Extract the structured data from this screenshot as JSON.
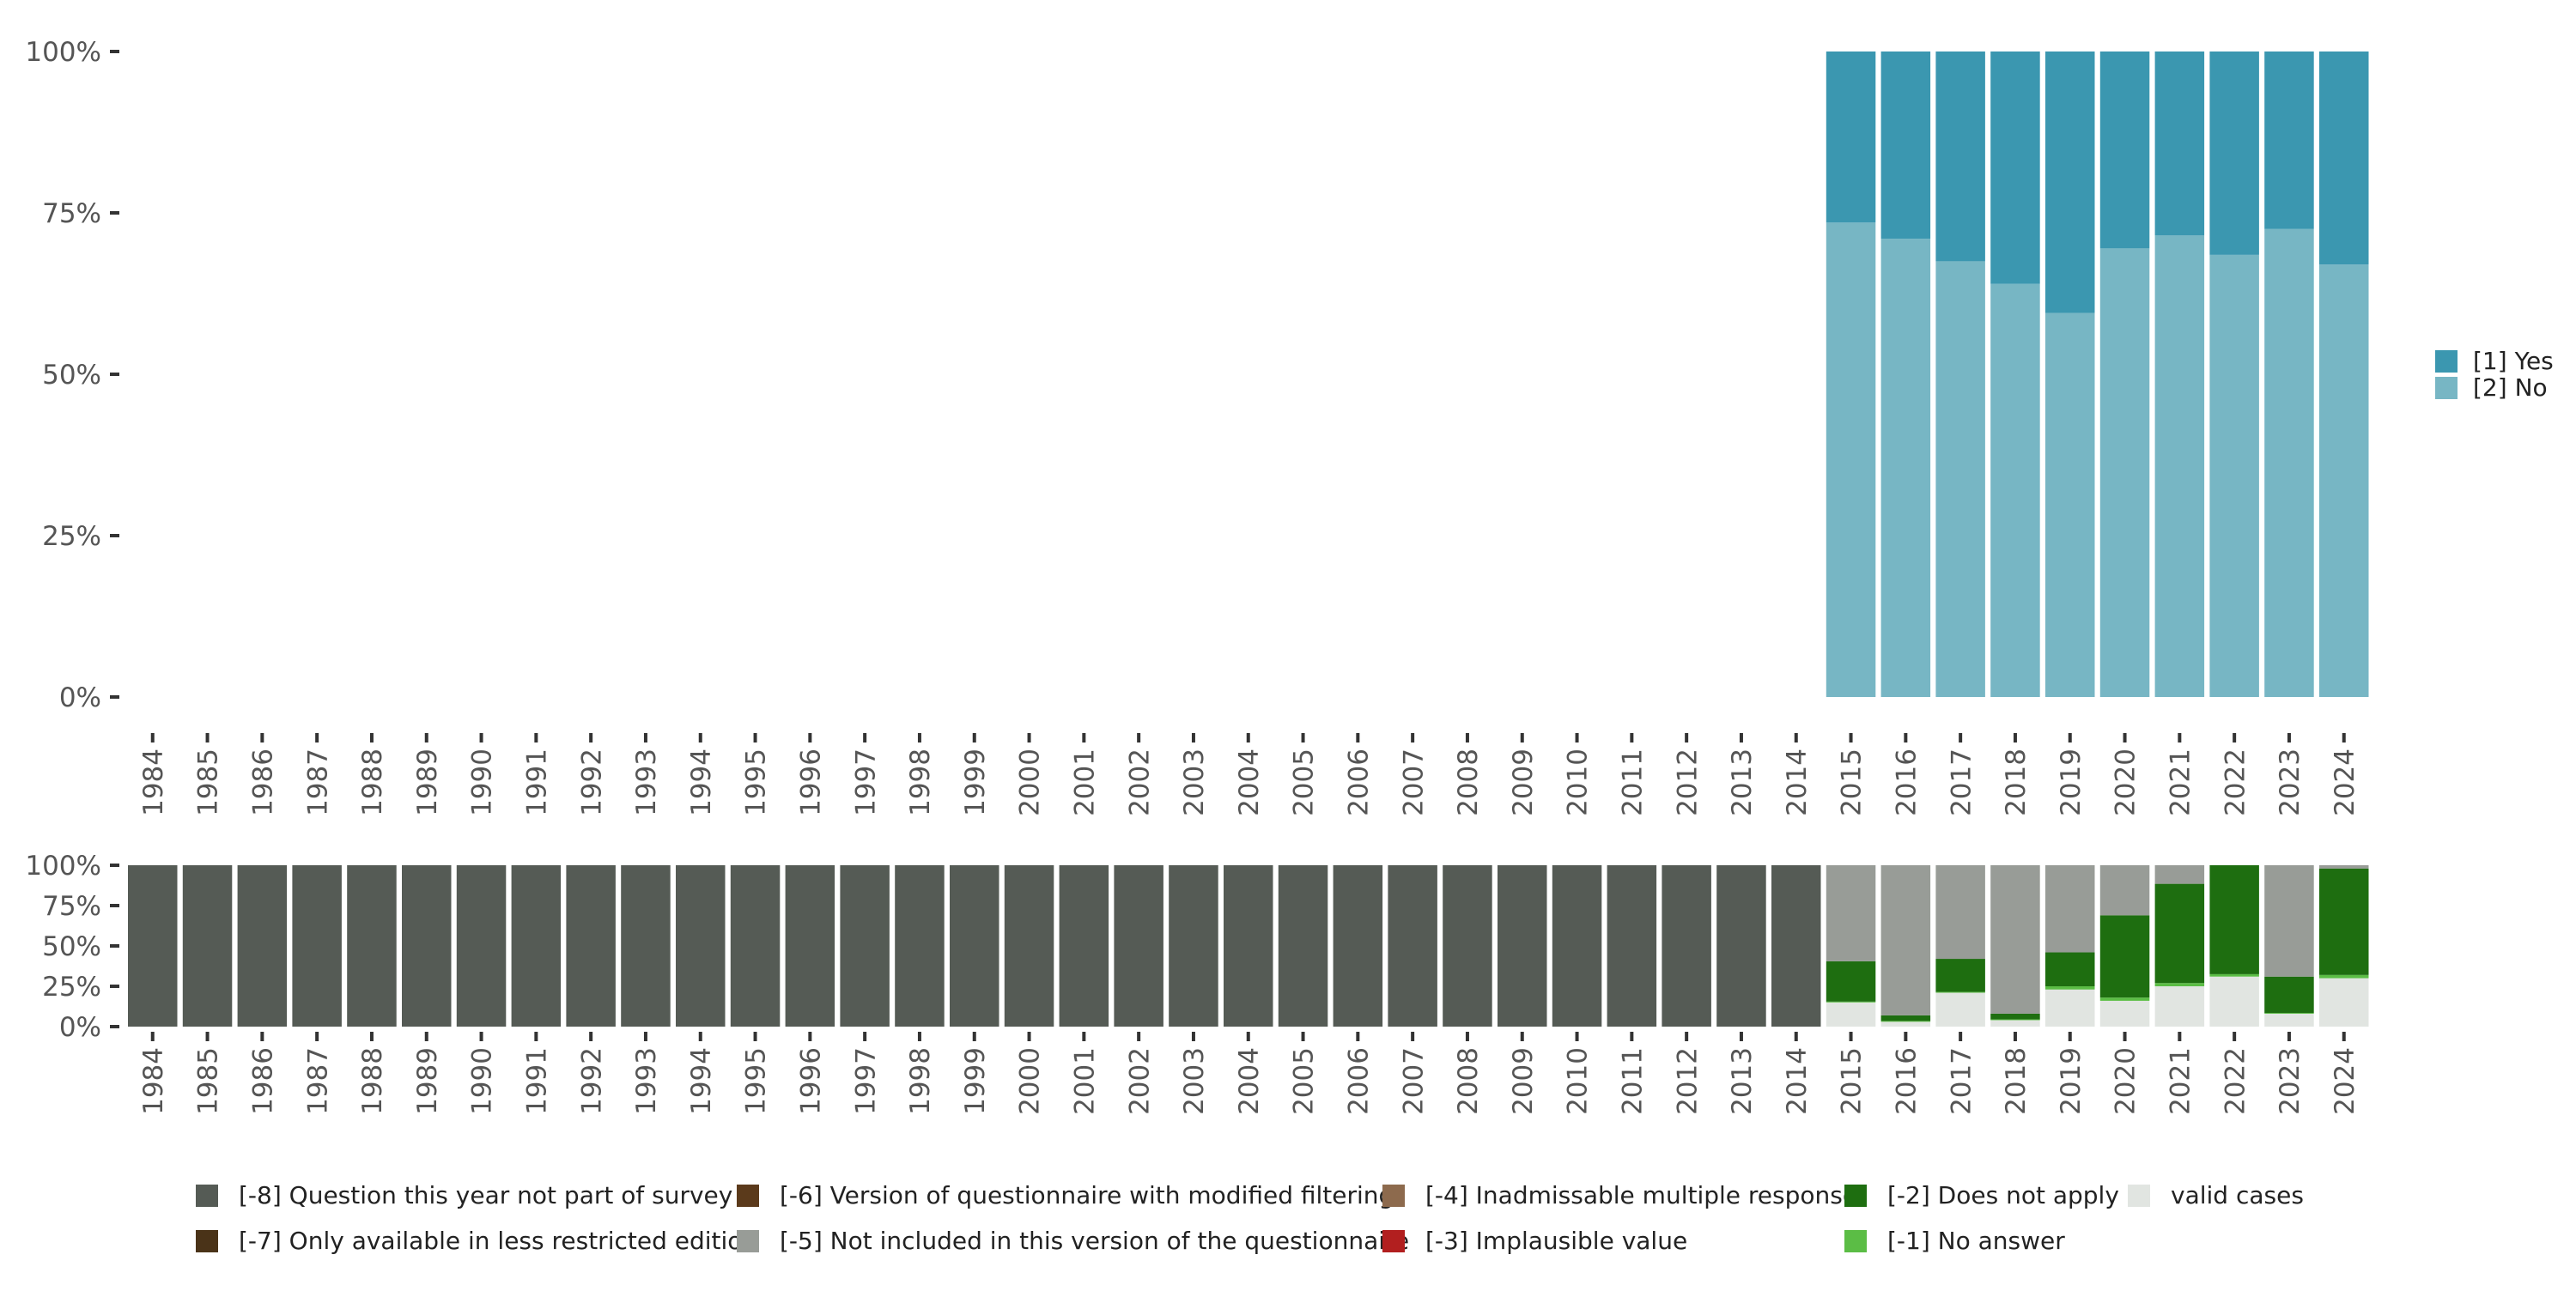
{
  "colors": {
    "yes": "#3b97b0",
    "no": "#77b6c4",
    "m8": "#555b55",
    "m7": "#4a3318",
    "m6": "#5b3a1b",
    "m5": "#989c97",
    "m4": "#8d6a4d",
    "m3": "#b21f1f",
    "m2": "#1e6e10",
    "m1": "#5bbd45",
    "valid": "#e1e5e1",
    "axis_text": "#555555",
    "tick": "#333333"
  },
  "chart_data": [
    {
      "type": "bar",
      "stacked": true,
      "normalized": true,
      "categories": [
        "1984",
        "1985",
        "1986",
        "1987",
        "1988",
        "1989",
        "1990",
        "1991",
        "1992",
        "1993",
        "1994",
        "1995",
        "1996",
        "1997",
        "1998",
        "1999",
        "2000",
        "2001",
        "2002",
        "2003",
        "2004",
        "2005",
        "2006",
        "2007",
        "2008",
        "2009",
        "2010",
        "2011",
        "2012",
        "2013",
        "2014",
        "2015",
        "2016",
        "2017",
        "2018",
        "2019",
        "2020",
        "2021",
        "2022",
        "2023",
        "2024"
      ],
      "ylim": [
        0,
        100
      ],
      "yticks": [
        "0%",
        "25%",
        "50%",
        "75%",
        "100%"
      ],
      "legend_position": "right",
      "series": [
        {
          "name": "[2] No",
          "color_key": "no",
          "values": [
            null,
            null,
            null,
            null,
            null,
            null,
            null,
            null,
            null,
            null,
            null,
            null,
            null,
            null,
            null,
            null,
            null,
            null,
            null,
            null,
            null,
            null,
            null,
            null,
            null,
            null,
            null,
            null,
            null,
            null,
            null,
            73.5,
            71,
            67.5,
            64,
            59.5,
            69.5,
            71.5,
            68.5,
            72.5,
            67
          ]
        },
        {
          "name": "[1] Yes",
          "color_key": "yes",
          "values": [
            null,
            null,
            null,
            null,
            null,
            null,
            null,
            null,
            null,
            null,
            null,
            null,
            null,
            null,
            null,
            null,
            null,
            null,
            null,
            null,
            null,
            null,
            null,
            null,
            null,
            null,
            null,
            null,
            null,
            null,
            null,
            26.5,
            29,
            32.5,
            36,
            40.5,
            30.5,
            28.5,
            31.5,
            27.5,
            33
          ]
        }
      ]
    },
    {
      "type": "bar",
      "stacked": true,
      "normalized": true,
      "categories": [
        "1984",
        "1985",
        "1986",
        "1987",
        "1988",
        "1989",
        "1990",
        "1991",
        "1992",
        "1993",
        "1994",
        "1995",
        "1996",
        "1997",
        "1998",
        "1999",
        "2000",
        "2001",
        "2002",
        "2003",
        "2004",
        "2005",
        "2006",
        "2007",
        "2008",
        "2009",
        "2010",
        "2011",
        "2012",
        "2013",
        "2014",
        "2015",
        "2016",
        "2017",
        "2018",
        "2019",
        "2020",
        "2021",
        "2022",
        "2023",
        "2024"
      ],
      "ylim": [
        0,
        100
      ],
      "yticks": [
        "0%",
        "25%",
        "50%",
        "75%",
        "100%"
      ],
      "legend_position": "bottom",
      "series": [
        {
          "name": "valid cases",
          "color_key": "valid",
          "values": [
            0,
            0,
            0,
            0,
            0,
            0,
            0,
            0,
            0,
            0,
            0,
            0,
            0,
            0,
            0,
            0,
            0,
            0,
            0,
            0,
            0,
            0,
            0,
            0,
            0,
            0,
            0,
            0,
            0,
            0,
            0,
            15,
            3,
            21,
            4,
            23,
            16,
            25,
            31,
            8,
            30
          ]
        },
        {
          "name": "[-1] No answer",
          "color_key": "m1",
          "values": [
            0,
            0,
            0,
            0,
            0,
            0,
            0,
            0,
            0,
            0,
            0,
            0,
            0,
            0,
            0,
            0,
            0,
            0,
            0,
            0,
            0,
            0,
            0,
            0,
            0,
            0,
            0,
            0,
            0,
            0,
            0,
            0.5,
            0.5,
            0.5,
            0.5,
            2,
            2,
            2,
            1.5,
            0.5,
            2
          ]
        },
        {
          "name": "[-2] Does not apply",
          "color_key": "m2",
          "values": [
            0,
            0,
            0,
            0,
            0,
            0,
            0,
            0,
            0,
            0,
            0,
            0,
            0,
            0,
            0,
            0,
            0,
            0,
            0,
            0,
            0,
            0,
            0,
            0,
            0,
            0,
            0,
            0,
            0,
            0,
            0,
            25,
            3.5,
            20.5,
            3.5,
            21,
            51,
            61.5,
            67.5,
            22.5,
            66
          ]
        },
        {
          "name": "[-3] Implausible value",
          "color_key": "m3",
          "values": [
            0,
            0,
            0,
            0,
            0,
            0,
            0,
            0,
            0,
            0,
            0,
            0,
            0,
            0,
            0,
            0,
            0,
            0,
            0,
            0,
            0,
            0,
            0,
            0,
            0,
            0,
            0,
            0,
            0,
            0,
            0,
            0,
            0,
            0,
            0,
            0,
            0,
            0,
            0,
            0,
            0
          ]
        },
        {
          "name": "[-4] Inadmissable multiple response",
          "color_key": "m4",
          "values": [
            0,
            0,
            0,
            0,
            0,
            0,
            0,
            0,
            0,
            0,
            0,
            0,
            0,
            0,
            0,
            0,
            0,
            0,
            0,
            0,
            0,
            0,
            0,
            0,
            0,
            0,
            0,
            0,
            0,
            0,
            0,
            0,
            0,
            0,
            0,
            0,
            0,
            0,
            0,
            0,
            0
          ]
        },
        {
          "name": "[-5] Not included in this version of the questionnaire",
          "color_key": "m5",
          "values": [
            0,
            0,
            0,
            0,
            0,
            0,
            0,
            0,
            0,
            0,
            0,
            0,
            0,
            0,
            0,
            0,
            0,
            0,
            0,
            0,
            0,
            0,
            0,
            0,
            0,
            0,
            0,
            0,
            0,
            0,
            0,
            59.5,
            93,
            58,
            92,
            54,
            31,
            11.5,
            0,
            69,
            2
          ]
        },
        {
          "name": "[-6] Version of questionnaire with modified filtering",
          "color_key": "m6",
          "values": [
            0,
            0,
            0,
            0,
            0,
            0,
            0,
            0,
            0,
            0,
            0,
            0,
            0,
            0,
            0,
            0,
            0,
            0,
            0,
            0,
            0,
            0,
            0,
            0,
            0,
            0,
            0,
            0,
            0,
            0,
            0,
            0,
            0,
            0,
            0,
            0,
            0,
            0,
            0,
            0,
            0
          ]
        },
        {
          "name": "[-7] Only available in less restricted edition",
          "color_key": "m7",
          "values": [
            0,
            0,
            0,
            0,
            0,
            0,
            0,
            0,
            0,
            0,
            0,
            0,
            0,
            0,
            0,
            0,
            0,
            0,
            0,
            0,
            0,
            0,
            0,
            0,
            0,
            0,
            0,
            0,
            0,
            0,
            0,
            0,
            0,
            0,
            0,
            0,
            0,
            0,
            0,
            0,
            0
          ]
        },
        {
          "name": "[-8] Question this year not part of survey",
          "color_key": "m8",
          "values": [
            100,
            100,
            100,
            100,
            100,
            100,
            100,
            100,
            100,
            100,
            100,
            100,
            100,
            100,
            100,
            100,
            100,
            100,
            100,
            100,
            100,
            100,
            100,
            100,
            100,
            100,
            100,
            100,
            100,
            100,
            100,
            0,
            0,
            0,
            0,
            0,
            0,
            0,
            0,
            0,
            0
          ]
        }
      ]
    }
  ],
  "legend_main": [
    {
      "label": "[1] Yes",
      "color_key": "yes"
    },
    {
      "label": "[2] No",
      "color_key": "no"
    }
  ],
  "legend_bottom": [
    {
      "label": "[-8] Question this year not part of survey",
      "color_key": "m8"
    },
    {
      "label": "[-7] Only available in less restricted edition",
      "color_key": "m7"
    },
    {
      "label": "[-6] Version of questionnaire with modified filtering",
      "color_key": "m6"
    },
    {
      "label": "[-5] Not included in this version of the questionnaire",
      "color_key": "m5"
    },
    {
      "label": "[-4] Inadmissable multiple response",
      "color_key": "m4"
    },
    {
      "label": "[-3] Implausible value",
      "color_key": "m3"
    },
    {
      "label": "[-2] Does not apply",
      "color_key": "m2"
    },
    {
      "label": "[-1] No answer",
      "color_key": "m1"
    },
    {
      "label": "valid cases",
      "color_key": "valid"
    }
  ]
}
